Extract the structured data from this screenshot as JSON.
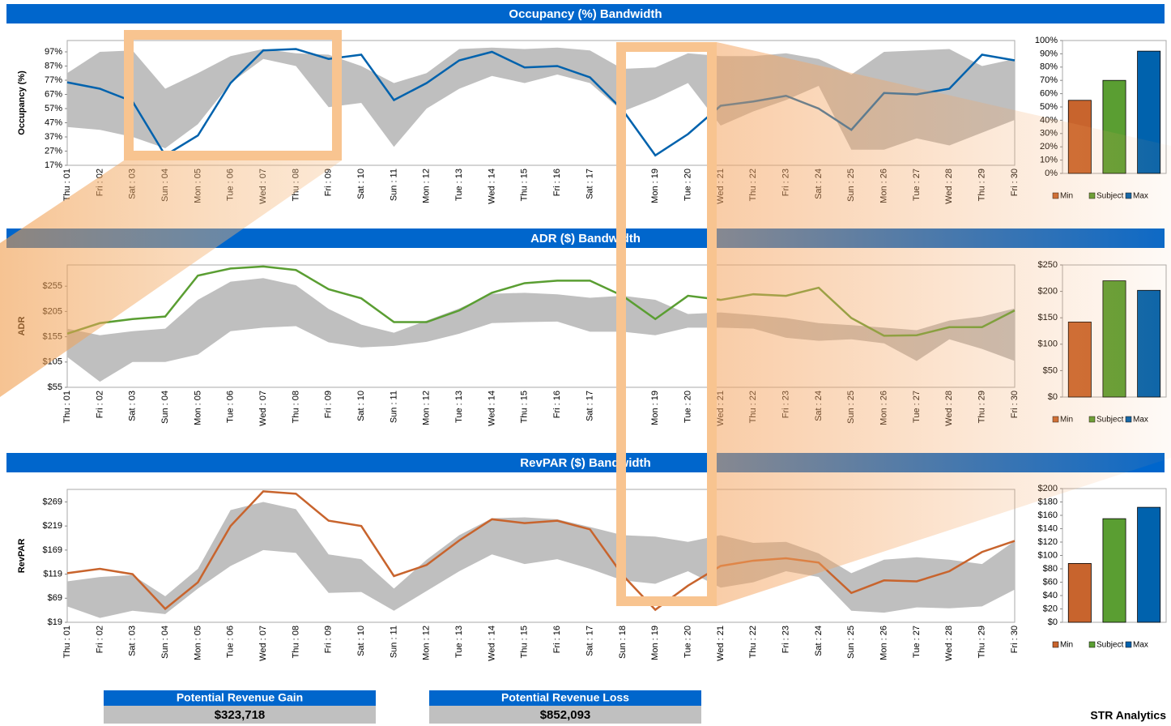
{
  "chart_data": [
    {
      "type": "band",
      "title": "Occupancy (%) Bandwidth",
      "y_label": "Occupancy (%)",
      "color": "#0062ad",
      "band_color": "#bfbfbf",
      "categories": [
        "Thu : 01",
        "Fri : 02",
        "Sat : 03",
        "Sun : 04",
        "Mon : 05",
        "Tue : 06",
        "Wed : 07",
        "Thu : 08",
        "Fri : 09",
        "Sat : 10",
        "Sun : 11",
        "Mon : 12",
        "Tue : 13",
        "Wed : 14",
        "Thu : 15",
        "Fri : 16",
        "Sat : 17",
        "Sun : 18",
        "Mon : 19",
        "Tue : 20",
        "Wed : 21",
        "Thu : 22",
        "Fri : 23",
        "Sat : 24",
        "Sun : 25",
        "Mon : 26",
        "Tue : 27",
        "Wed : 28",
        "Thu : 29",
        "Fri : 30"
      ],
      "values": [
        75.5,
        71,
        62,
        24,
        38,
        75,
        98,
        99,
        92,
        95,
        63,
        75,
        91,
        97,
        86,
        87,
        79,
        56,
        24,
        39,
        59,
        62,
        66,
        57,
        42,
        68,
        67,
        71,
        95,
        91
      ],
      "band_max": [
        82,
        97,
        98,
        71,
        82,
        94,
        99,
        96,
        95,
        87,
        75,
        82,
        99,
        100,
        99,
        100,
        98,
        85,
        86,
        96,
        94,
        94,
        96,
        92,
        81,
        97,
        98,
        99,
        87,
        92
      ],
      "band_min": [
        44,
        42,
        37,
        29,
        46,
        75,
        92,
        87,
        58,
        61,
        30,
        57,
        71,
        80,
        75,
        81,
        75,
        55,
        64,
        75,
        45,
        55,
        63,
        73,
        28,
        28,
        36,
        31,
        40,
        49
      ],
      "ylim": [
        17,
        105
      ],
      "yticks": [
        {
          "value": 17,
          "label": "17%"
        },
        {
          "value": 27,
          "label": "27%"
        },
        {
          "value": 37,
          "label": "37%"
        },
        {
          "value": 47,
          "label": "47%"
        },
        {
          "value": 57,
          "label": "57%"
        },
        {
          "value": 67,
          "label": "67%"
        },
        {
          "value": 77,
          "label": "77%"
        },
        {
          "value": 87,
          "label": "87%"
        },
        {
          "value": 97,
          "label": "97%"
        }
      ]
    },
    {
      "type": "bar",
      "categories": [
        "Min",
        "Subject",
        "Max"
      ],
      "colors": [
        "#c8642d",
        "#5a9e32",
        "#0062ad"
      ],
      "values": [
        55,
        70,
        92
      ],
      "ylim": [
        0,
        100
      ],
      "yticks": [
        {
          "value": 0,
          "label": "0%"
        },
        {
          "value": 10,
          "label": "10%"
        },
        {
          "value": 20,
          "label": "20%"
        },
        {
          "value": 30,
          "label": "30%"
        },
        {
          "value": 40,
          "label": "40%"
        },
        {
          "value": 50,
          "label": "50%"
        },
        {
          "value": 60,
          "label": "60%"
        },
        {
          "value": 70,
          "label": "70%"
        },
        {
          "value": 80,
          "label": "80%"
        },
        {
          "value": 90,
          "label": "90%"
        },
        {
          "value": 100,
          "label": "100%"
        }
      ]
    },
    {
      "type": "band",
      "title": "ADR ($) Bandwidth",
      "y_label": "ADR",
      "color": "#5a9e32",
      "band_color": "#bfbfbf",
      "categories": [
        "Thu : 01",
        "Fri : 02",
        "Sat : 03",
        "Sun : 04",
        "Mon : 05",
        "Tue : 06",
        "Wed : 07",
        "Thu : 08",
        "Fri : 09",
        "Sat : 10",
        "Sun : 11",
        "Mon : 12",
        "Tue : 13",
        "Wed : 14",
        "Thu : 15",
        "Fri : 16",
        "Sat : 17",
        "Sun : 18",
        "Mon : 19",
        "Tue : 20",
        "Wed : 21",
        "Thu : 22",
        "Fri : 23",
        "Sat : 24",
        "Sun : 25",
        "Mon : 26",
        "Tue : 27",
        "Wed : 28",
        "Thu : 29",
        "Fri : 30"
      ],
      "values": [
        161,
        182,
        190,
        195,
        276,
        290,
        294,
        287,
        249,
        231,
        184,
        184,
        207,
        242,
        261,
        266,
        266,
        236,
        190,
        236,
        228,
        239,
        236,
        252,
        192,
        157,
        158,
        174,
        174,
        207
      ],
      "band_max": [
        171,
        158,
        166,
        171,
        228,
        264,
        271,
        257,
        210,
        179,
        163,
        187,
        211,
        240,
        242,
        239,
        232,
        236,
        228,
        200,
        203,
        198,
        192,
        182,
        178,
        173,
        168,
        187,
        195,
        211
      ],
      "band_min": [
        115,
        66,
        105,
        105,
        120,
        166,
        173,
        176,
        144,
        134,
        137,
        145,
        161,
        182,
        184,
        185,
        165,
        165,
        158,
        173,
        173,
        171,
        153,
        147,
        150,
        142,
        107,
        150,
        131,
        107
      ],
      "ylim": [
        55,
        297
      ],
      "yticks": [
        {
          "value": 55,
          "label": "$55"
        },
        {
          "value": 105,
          "label": "$105"
        },
        {
          "value": 155,
          "label": "$155"
        },
        {
          "value": 205,
          "label": "$205"
        },
        {
          "value": 255,
          "label": "$255"
        }
      ]
    },
    {
      "type": "bar",
      "categories": [
        "Min",
        "Subject",
        "Max"
      ],
      "colors": [
        "#c8642d",
        "#5a9e32",
        "#0062ad"
      ],
      "values": [
        142,
        220,
        202
      ],
      "ylim": [
        0,
        250
      ],
      "yticks": [
        {
          "value": 0,
          "label": "$0"
        },
        {
          "value": 50,
          "label": "$50"
        },
        {
          "value": 100,
          "label": "$100"
        },
        {
          "value": 150,
          "label": "$150"
        },
        {
          "value": 200,
          "label": "$200"
        },
        {
          "value": 250,
          "label": "$250"
        }
      ]
    },
    {
      "type": "band",
      "title": "RevPAR ($) Bandwidth",
      "y_label": "RevPAR",
      "color": "#c8642d",
      "band_color": "#bfbfbf",
      "categories": [
        "Thu : 01",
        "Fri : 02",
        "Sat : 03",
        "Sun : 04",
        "Mon : 05",
        "Tue : 06",
        "Wed : 07",
        "Thu : 08",
        "Fri : 09",
        "Sat : 10",
        "Sun : 11",
        "Mon : 12",
        "Tue : 13",
        "Wed : 14",
        "Thu : 15",
        "Fri : 16",
        "Sat : 17",
        "Sun : 18",
        "Mon : 19",
        "Tue : 20",
        "Wed : 21",
        "Thu : 22",
        "Fri : 23",
        "Sat : 24",
        "Sun : 25",
        "Mon : 26",
        "Tue : 27",
        "Wed : 28",
        "Thu : 29",
        "Fri : 30"
      ],
      "values": [
        121,
        130,
        119,
        47,
        102,
        219,
        291,
        286,
        230,
        219,
        115,
        138,
        189,
        233,
        225,
        230,
        212,
        117,
        45,
        95,
        136,
        147,
        152,
        143,
        80,
        106,
        104,
        125,
        165,
        188
      ],
      "band_max": [
        104,
        113,
        117,
        73,
        130,
        252,
        269,
        254,
        160,
        150,
        89,
        149,
        200,
        235,
        237,
        233,
        217,
        200,
        197,
        186,
        200,
        184,
        186,
        162,
        121,
        149,
        154,
        149,
        140,
        188
      ],
      "band_min": [
        52,
        28,
        43,
        36,
        89,
        136,
        169,
        163,
        80,
        82,
        43,
        84,
        125,
        160,
        140,
        150,
        130,
        106,
        99,
        125,
        91,
        102,
        125,
        113,
        43,
        39,
        50,
        48,
        52,
        87
      ],
      "ylim": [
        19,
        295
      ],
      "yticks": [
        {
          "value": 19,
          "label": "$19"
        },
        {
          "value": 69,
          "label": "$69"
        },
        {
          "value": 119,
          "label": "$119"
        },
        {
          "value": 169,
          "label": "$169"
        },
        {
          "value": 219,
          "label": "$219"
        },
        {
          "value": 269,
          "label": "$269"
        }
      ]
    },
    {
      "type": "bar",
      "categories": [
        "Min",
        "Subject",
        "Max"
      ],
      "colors": [
        "#c8642d",
        "#5a9e32",
        "#0062ad"
      ],
      "values": [
        88,
        155,
        172
      ],
      "ylim": [
        0,
        200
      ],
      "yticks": [
        {
          "value": 0,
          "label": "$0"
        },
        {
          "value": 20,
          "label": "$20"
        },
        {
          "value": 40,
          "label": "$40"
        },
        {
          "value": 60,
          "label": "$60"
        },
        {
          "value": 80,
          "label": "$80"
        },
        {
          "value": 100,
          "label": "$100"
        },
        {
          "value": 120,
          "label": "$120"
        },
        {
          "value": 140,
          "label": "$140"
        },
        {
          "value": 160,
          "label": "$160"
        },
        {
          "value": 180,
          "label": "$180"
        },
        {
          "value": 200,
          "label": "$200"
        }
      ]
    }
  ],
  "summary": {
    "gain_title": "Potential Revenue Gain",
    "gain_value": "$323,718",
    "loss_title": "Potential Revenue Loss",
    "loss_value": "$852,093"
  },
  "footer": "STR Analytics"
}
